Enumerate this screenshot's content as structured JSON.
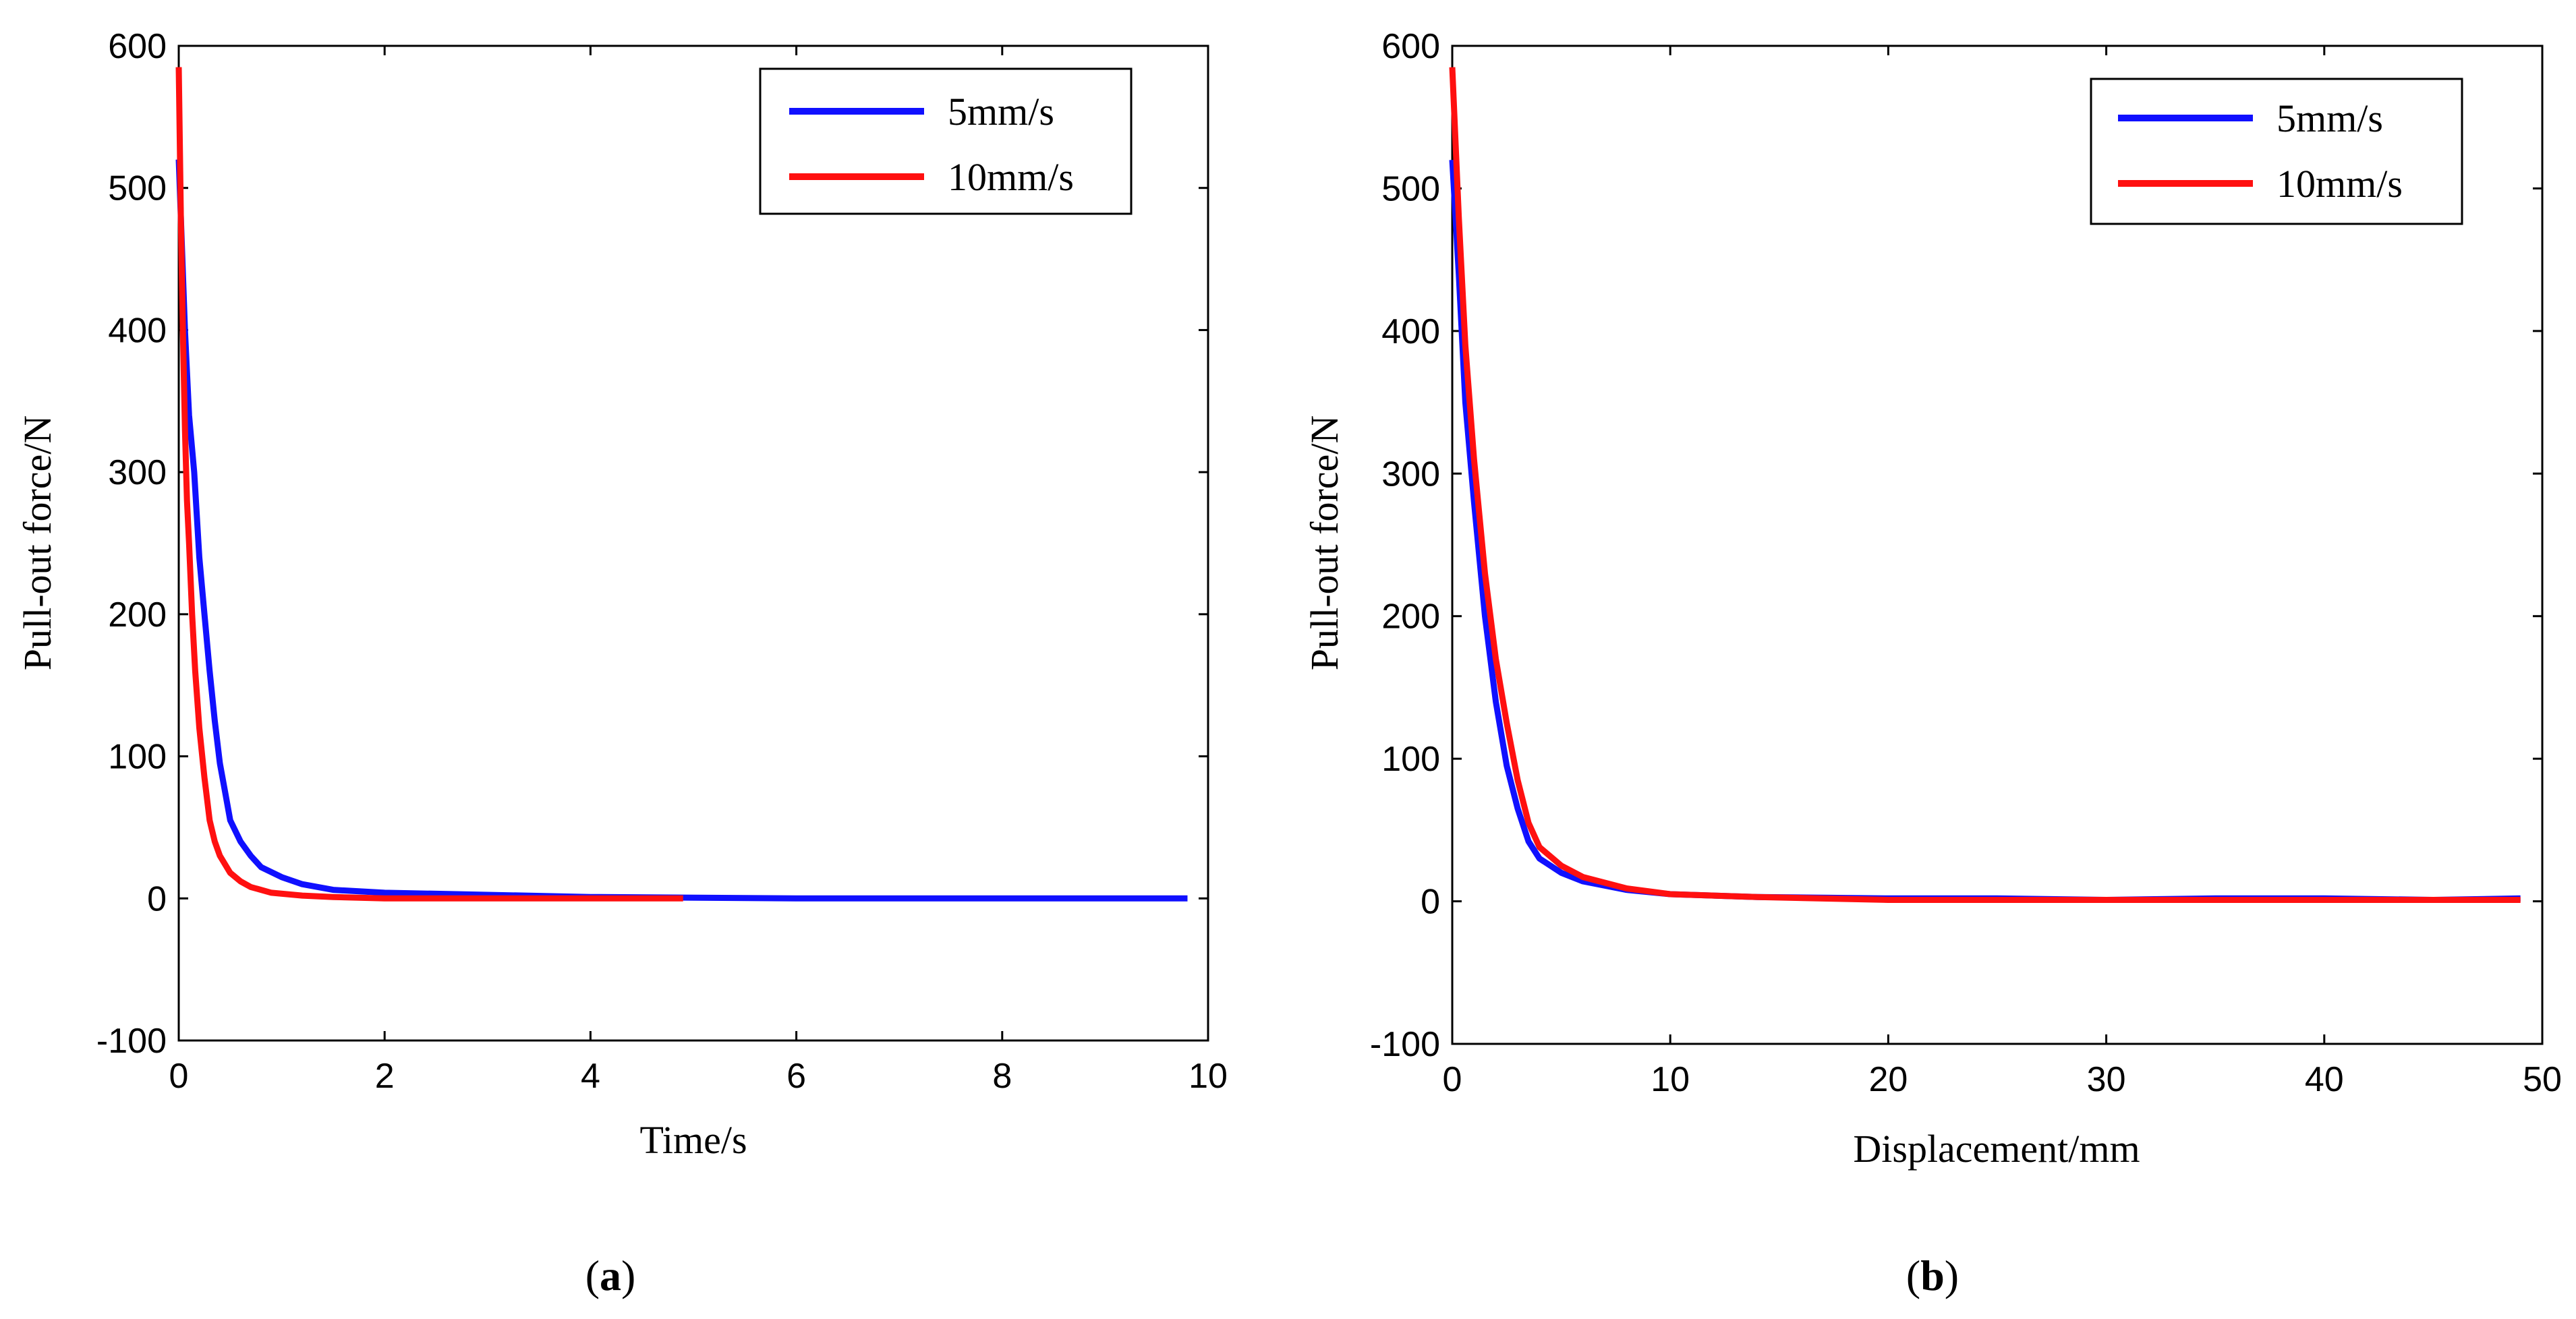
{
  "chart_data": [
    {
      "type": "line",
      "panel": "a",
      "caption_letter": "a",
      "xlabel": "Time/s",
      "ylabel": "Pull-out force/N",
      "xlim": [
        0,
        10
      ],
      "ylim": [
        -100,
        600
      ],
      "xticks": [
        "0",
        "2",
        "4",
        "6",
        "8",
        "10"
      ],
      "yticks": [
        "-100",
        "0",
        "100",
        "200",
        "300",
        "400",
        "500",
        "600"
      ],
      "legend_position": "top-right",
      "series": [
        {
          "name": "5mm/s",
          "color": "#1010ff",
          "x": [
            0.0,
            0.03,
            0.06,
            0.1,
            0.15,
            0.2,
            0.25,
            0.3,
            0.35,
            0.4,
            0.45,
            0.5,
            0.6,
            0.7,
            0.8,
            1.0,
            1.2,
            1.5,
            2.0,
            2.7,
            4.0,
            6.0,
            8.0,
            9.8
          ],
          "y": [
            520,
            460,
            400,
            340,
            300,
            240,
            200,
            160,
            125,
            95,
            75,
            55,
            40,
            30,
            22,
            15,
            10,
            6,
            4,
            3,
            1,
            0,
            0,
            0
          ]
        },
        {
          "name": "10mm/s",
          "color": "#ff1010",
          "x": [
            0.0,
            0.02,
            0.04,
            0.06,
            0.08,
            0.1,
            0.13,
            0.16,
            0.2,
            0.25,
            0.3,
            0.35,
            0.4,
            0.5,
            0.6,
            0.7,
            0.9,
            1.2,
            1.5,
            2.0,
            3.0,
            4.0,
            4.9
          ],
          "y": [
            585,
            480,
            400,
            330,
            280,
            250,
            200,
            160,
            120,
            85,
            55,
            40,
            30,
            18,
            12,
            8,
            4,
            2,
            1,
            0,
            0,
            0,
            0
          ]
        }
      ]
    },
    {
      "type": "line",
      "panel": "b",
      "caption_letter": "b",
      "xlabel": "Displacement/mm",
      "ylabel": "Pull-out force/N",
      "xlim": [
        0,
        50
      ],
      "ylim": [
        -100,
        600
      ],
      "xticks": [
        "0",
        "10",
        "20",
        "30",
        "40",
        "50"
      ],
      "yticks": [
        "-100",
        "0",
        "100",
        "200",
        "300",
        "400",
        "500",
        "600"
      ],
      "legend_position": "top-right",
      "series": [
        {
          "name": "5mm/s",
          "color": "#1010ff",
          "x": [
            0.0,
            0.3,
            0.6,
            1.0,
            1.5,
            2.0,
            2.5,
            3.0,
            3.5,
            4.0,
            5.0,
            6.0,
            8.0,
            10.0,
            14.0,
            20.0,
            25.0,
            30.0,
            35.0,
            40.0,
            45.0,
            49.0
          ],
          "y": [
            520,
            440,
            350,
            280,
            200,
            140,
            95,
            65,
            42,
            30,
            20,
            14,
            8,
            5,
            3,
            2,
            2,
            1,
            2,
            2,
            1,
            2
          ]
        },
        {
          "name": "10mm/s",
          "color": "#ff1010",
          "x": [
            0.0,
            0.3,
            0.6,
            1.0,
            1.5,
            2.0,
            2.5,
            3.0,
            3.5,
            4.0,
            5.0,
            6.0,
            8.0,
            10.0,
            14.0,
            20.0,
            25.0,
            30.0,
            35.0,
            40.0,
            45.0,
            49.0
          ],
          "y": [
            585,
            480,
            390,
            310,
            230,
            170,
            125,
            85,
            55,
            38,
            25,
            17,
            9,
            5,
            3,
            1,
            1,
            1,
            1,
            1,
            1,
            1
          ]
        }
      ]
    }
  ]
}
